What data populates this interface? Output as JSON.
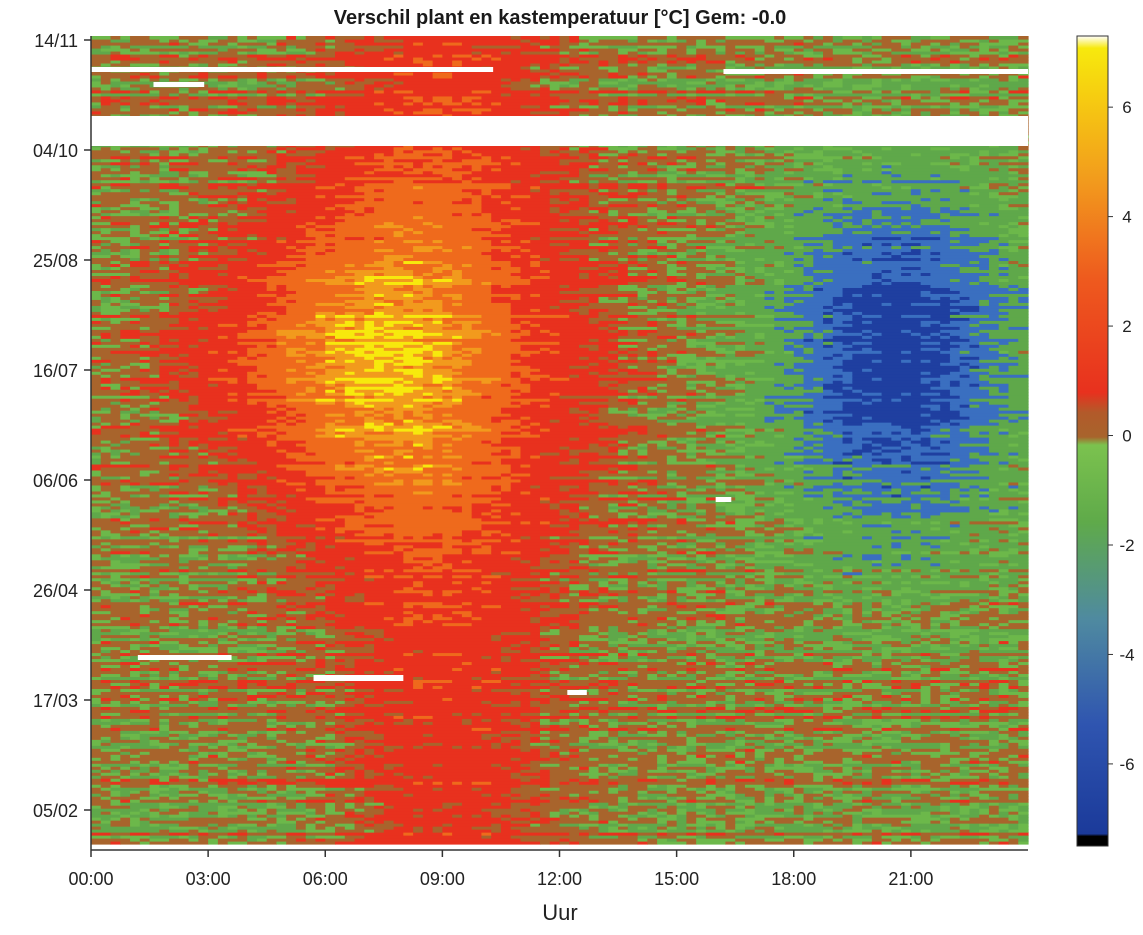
{
  "chart_data": {
    "type": "heatmap",
    "title": "Verschil plant en kastemperatuur [°C] Gem: -0.0",
    "xlabel": "Uur",
    "ylabel": "",
    "x_ticks": [
      "00:00",
      "03:00",
      "06:00",
      "09:00",
      "12:00",
      "15:00",
      "18:00",
      "21:00"
    ],
    "x_range_hours": [
      0,
      24
    ],
    "y_ticks": [
      "14/11",
      "04/10",
      "25/08",
      "16/07",
      "06/06",
      "26/04",
      "17/03",
      "05/02"
    ],
    "colorbar": {
      "ticks": [
        6,
        4,
        2,
        0,
        -2,
        -4,
        -6
      ],
      "range": [
        -7.5,
        7.3
      ],
      "colors": {
        "low": "#1f3fa0",
        "mid_low": "#3a6fc0",
        "neutral_low": "#6cb84a",
        "neutral": "#6b9a3a",
        "near_zero": "#a8642c",
        "warm": "#e8311e",
        "hot": "#f29a1d",
        "max": "#f7e90d"
      }
    },
    "pattern_summary": {
      "morning_warm_hours": [
        5,
        13
      ],
      "peak_warm_value": 5.5,
      "evening_cool_hours": [
        17.5,
        24
      ],
      "min_cool_value": -4.5,
      "night_value": -0.5,
      "season_strongest": "16/07"
    },
    "legend": "colorbar-right",
    "grid": false
  }
}
